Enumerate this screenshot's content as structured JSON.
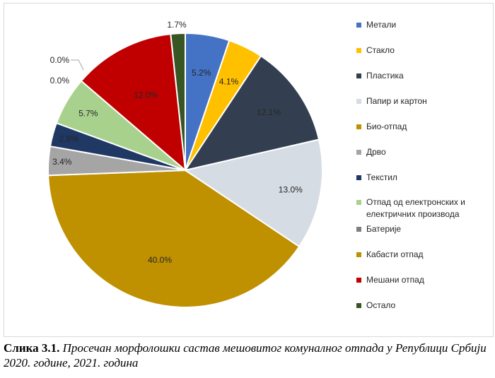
{
  "chart_data": {
    "type": "pie",
    "title": "",
    "categories": [
      "Метали",
      "Стакло",
      "Пластика",
      "Папир и картон",
      "Био-отпад",
      "Дрво",
      "Текстил",
      "Отпад од електронских и електричних производа",
      "Батерије",
      "Кабасти отпад",
      "Мешани отпад",
      "Остало"
    ],
    "values": [
      5.2,
      4.1,
      12.1,
      13.0,
      40.0,
      3.4,
      2.8,
      5.7,
      0.0,
      0.0,
      12.0,
      1.7
    ],
    "labels": [
      "5.2%",
      "4.1%",
      "12.1%",
      "13.0%",
      "40.0%",
      "3.4%",
      "2.8%",
      "5.7%",
      "0.0%",
      "0.0%",
      "12.0%",
      "1.7%"
    ],
    "colors": [
      "#4472c4",
      "#ffc000",
      "#333f50",
      "#d6dce4",
      "#bf9000",
      "#a5a5a5",
      "#1f3864",
      "#a9d18e",
      "#7f7f7f",
      "#bf9000",
      "#c00000",
      "#375623"
    ],
    "legend_position": "right",
    "legend": [
      {
        "label": "Метали"
      },
      {
        "label": "Стакло"
      },
      {
        "label": "Пластика"
      },
      {
        "label": "Папир и картон"
      },
      {
        "label": "Био-отпад"
      },
      {
        "label": "Дрво"
      },
      {
        "label": "Текстил"
      },
      {
        "label": "Отпад од електронских и",
        "label2": "електричних производа"
      },
      {
        "label": "Батерије"
      },
      {
        "label": "Кабасти отпад"
      },
      {
        "label": "Мешани отпад"
      },
      {
        "label": "Остало"
      }
    ]
  },
  "caption": {
    "number": "Слика 3.1.",
    "text": " Просечан морфолошки састав мешовитог комуналног отпада у Републици Србији 2020. године, 2021. година"
  }
}
